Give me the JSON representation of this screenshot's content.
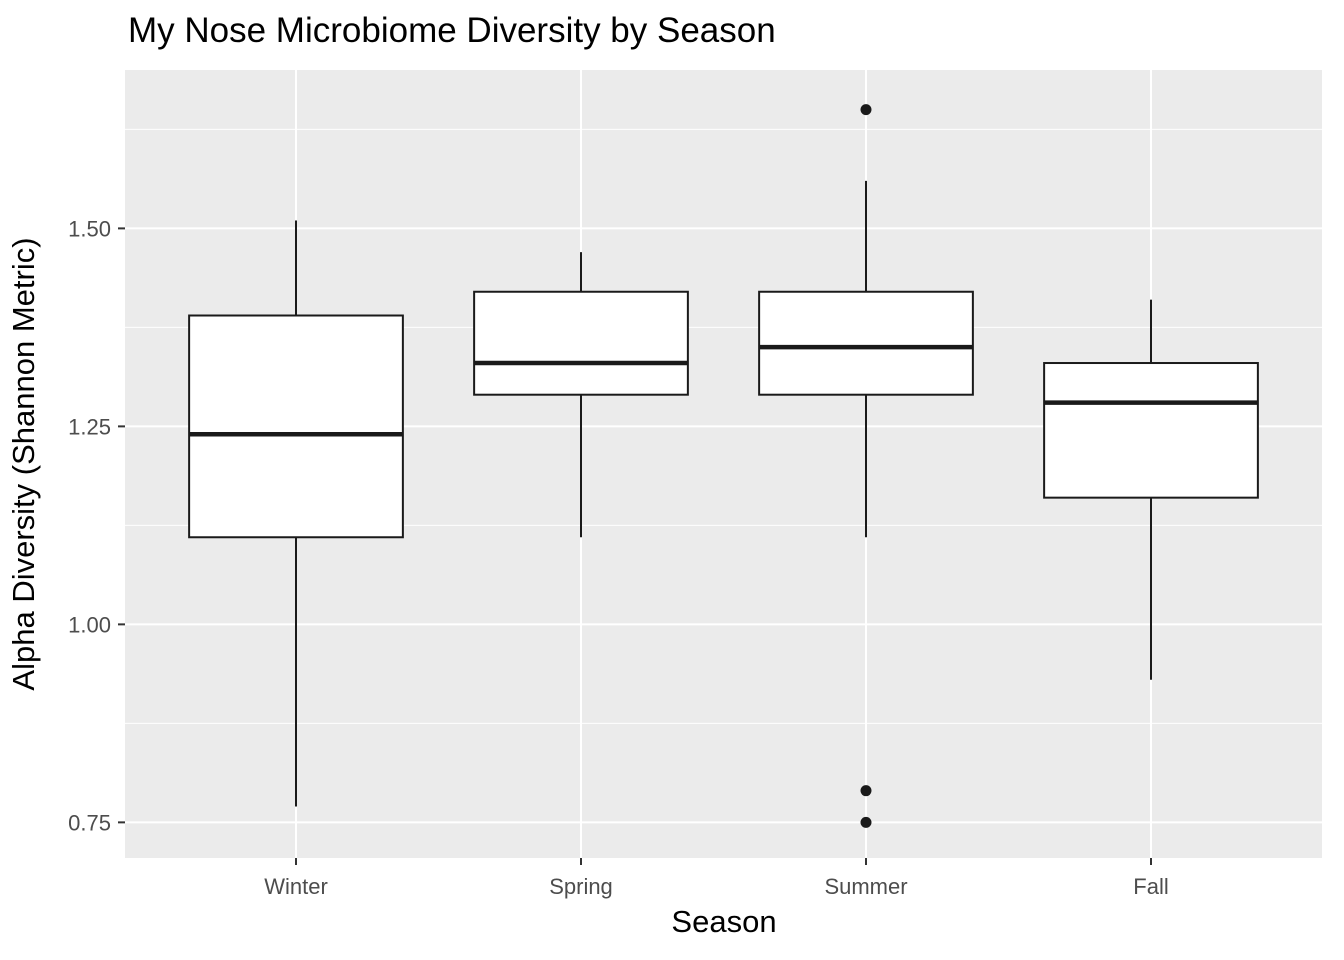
{
  "title": "My Nose Microbiome Diversity by Season",
  "colors": {
    "panel_bg": "#EBEBEB",
    "grid_major": "#FFFFFF",
    "grid_minor": "#FFFFFF",
    "box_fill": "#FFFFFF",
    "box_stroke": "#1A1A1A",
    "outlier": "#1A1A1A",
    "tick_mark": "#333333",
    "tick_label": "#4D4D4D",
    "title_color": "#000000"
  },
  "chart_data": {
    "type": "boxplot",
    "title": "My Nose Microbiome Diversity by Season",
    "xlabel": "Season",
    "ylabel": "Alpha Diversity (Shannon Metric)",
    "categories": [
      "Winter",
      "Spring",
      "Summer",
      "Fall"
    ],
    "ylim": [
      0.705,
      1.7
    ],
    "yticks": [
      0.75,
      1.0,
      1.25,
      1.5
    ],
    "ytick_labels": [
      "0.75",
      "1.00",
      "1.25",
      "1.50"
    ],
    "yticks_minor": [
      0.875,
      1.125,
      1.375,
      1.625
    ],
    "grid": true,
    "legend": "none",
    "boxes": [
      {
        "category": "Winter",
        "whisker_low": 0.77,
        "q1": 1.11,
        "median": 1.24,
        "q3": 1.39,
        "whisker_high": 1.51,
        "outliers": []
      },
      {
        "category": "Spring",
        "whisker_low": 1.11,
        "q1": 1.29,
        "median": 1.33,
        "q3": 1.42,
        "whisker_high": 1.47,
        "outliers": []
      },
      {
        "category": "Summer",
        "whisker_low": 1.11,
        "q1": 1.29,
        "median": 1.35,
        "q3": 1.42,
        "whisker_high": 1.56,
        "outliers": [
          1.65,
          0.79,
          0.75
        ]
      },
      {
        "category": "Fall",
        "whisker_low": 0.93,
        "q1": 1.16,
        "median": 1.28,
        "q3": 1.33,
        "whisker_high": 1.41,
        "outliers": []
      }
    ]
  }
}
